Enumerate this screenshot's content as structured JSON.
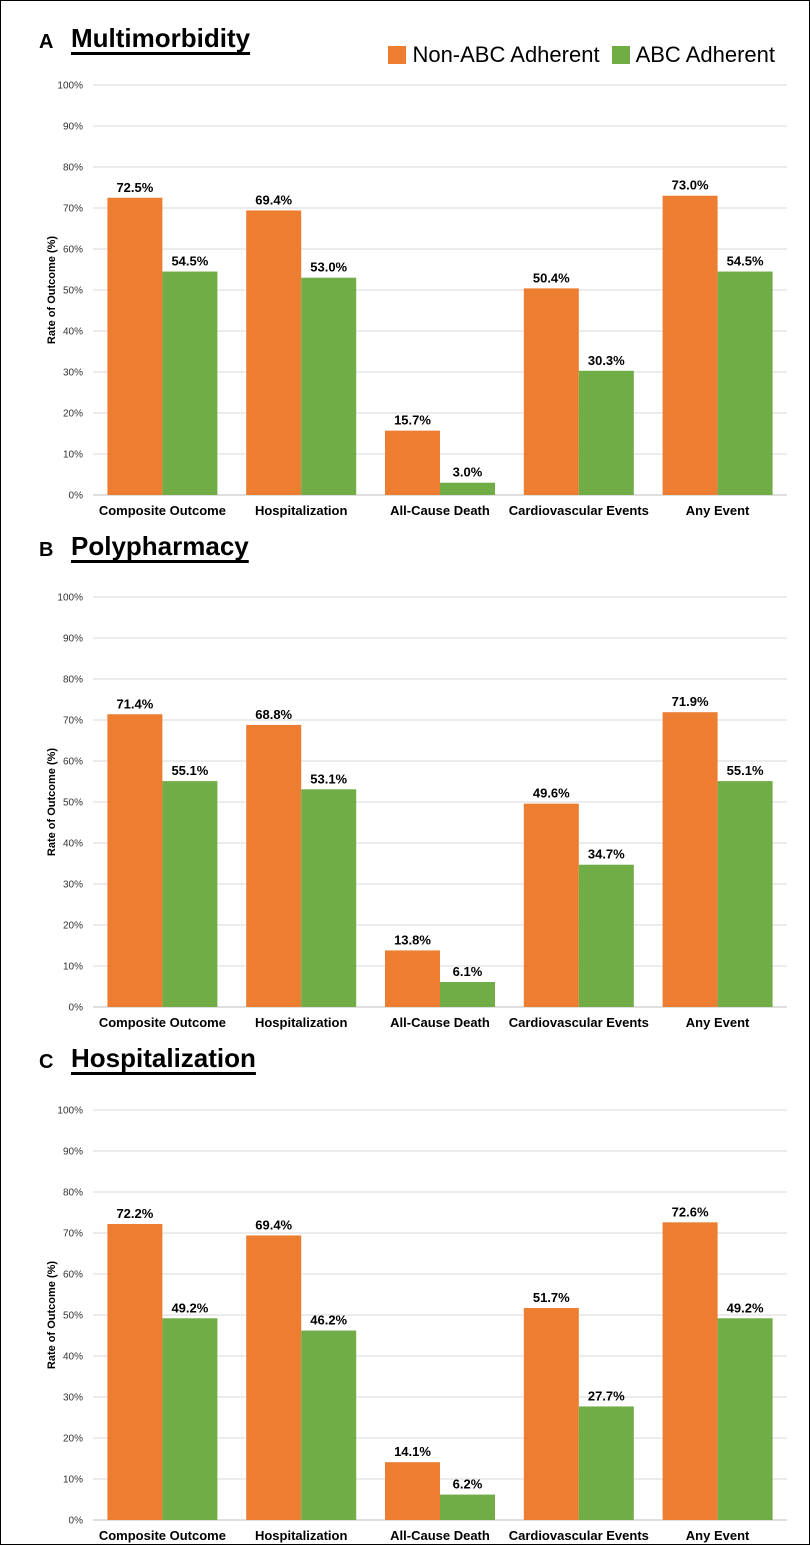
{
  "legend": {
    "items": [
      {
        "label": "Non-ABC Adherent",
        "color": "#ED7D31"
      },
      {
        "label": "ABC Adherent",
        "color": "#70AD47"
      }
    ]
  },
  "chart_data": [
    {
      "type": "bar",
      "panel": "A",
      "title": "Multimorbidity",
      "ylabel": "Rate of Outcome (%)",
      "ylim": [
        0,
        100
      ],
      "yticks": [
        "0%",
        "10%",
        "20%",
        "30%",
        "40%",
        "50%",
        "60%",
        "70%",
        "80%",
        "90%",
        "100%"
      ],
      "categories": [
        "Composite Outcome",
        "Hospitalization",
        "All-Cause Death",
        "Cardiovascular Events",
        "Any Event"
      ],
      "series": [
        {
          "name": "Non-ABC Adherent",
          "color": "#ED7D31",
          "values": [
            72.5,
            69.4,
            15.7,
            50.4,
            73.0
          ],
          "labels": [
            "72.5%",
            "69.4%",
            "15.7%",
            "50.4%",
            "73.0%"
          ]
        },
        {
          "name": "ABC Adherent",
          "color": "#70AD47",
          "values": [
            54.5,
            53.0,
            3.0,
            30.3,
            54.5
          ],
          "labels": [
            "54.5%",
            "53.0%",
            "3.0%",
            "30.3%",
            "54.5%"
          ]
        }
      ]
    },
    {
      "type": "bar",
      "panel": "B",
      "title": "Polypharmacy",
      "ylabel": "Rate of Outcome (%)",
      "ylim": [
        0,
        100
      ],
      "yticks": [
        "0%",
        "10%",
        "20%",
        "30%",
        "40%",
        "50%",
        "60%",
        "70%",
        "80%",
        "90%",
        "100%"
      ],
      "categories": [
        "Composite Outcome",
        "Hospitalization",
        "All-Cause Death",
        "Cardiovascular Events",
        "Any Event"
      ],
      "series": [
        {
          "name": "Non-ABC Adherent",
          "color": "#ED7D31",
          "values": [
            71.4,
            68.8,
            13.8,
            49.6,
            71.9
          ],
          "labels": [
            "71.4%",
            "68.8%",
            "13.8%",
            "49.6%",
            "71.9%"
          ]
        },
        {
          "name": "ABC Adherent",
          "color": "#70AD47",
          "values": [
            55.1,
            53.1,
            6.1,
            34.7,
            55.1
          ],
          "labels": [
            "55.1%",
            "53.1%",
            "6.1%",
            "34.7%",
            "55.1%"
          ]
        }
      ]
    },
    {
      "type": "bar",
      "panel": "C",
      "title": "Hospitalization",
      "ylabel": "Rate of Outcome (%)",
      "ylim": [
        0,
        100
      ],
      "yticks": [
        "0%",
        "10%",
        "20%",
        "30%",
        "40%",
        "50%",
        "60%",
        "70%",
        "80%",
        "90%",
        "100%"
      ],
      "categories": [
        "Composite Outcome",
        "Hospitalization",
        "All-Cause Death",
        "Cardiovascular Events",
        "Any Event"
      ],
      "series": [
        {
          "name": "Non-ABC Adherent",
          "color": "#ED7D31",
          "values": [
            72.2,
            69.4,
            14.1,
            51.7,
            72.6
          ],
          "labels": [
            "72.2%",
            "69.4%",
            "14.1%",
            "51.7%",
            "72.6%"
          ]
        },
        {
          "name": "ABC Adherent",
          "color": "#70AD47",
          "values": [
            49.2,
            46.2,
            6.2,
            27.7,
            49.2
          ],
          "labels": [
            "49.2%",
            "46.2%",
            "6.2%",
            "27.7%",
            "49.2%"
          ]
        }
      ]
    }
  ]
}
